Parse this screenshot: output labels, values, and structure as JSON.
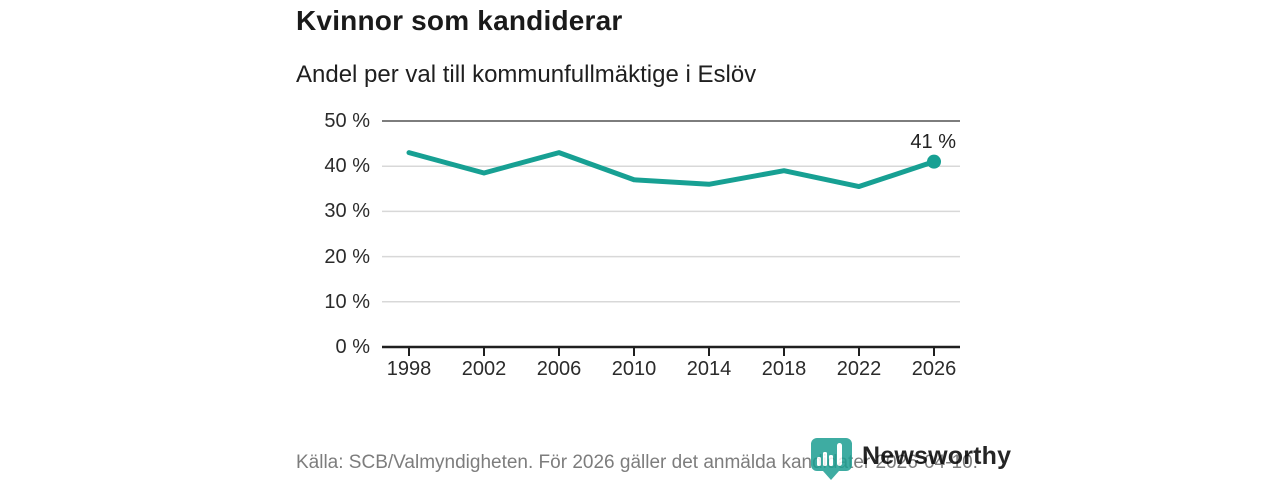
{
  "header": {
    "title": "Kvinnor som kandiderar",
    "subtitle": "Andel per val till kommunfullmäktige i Eslöv"
  },
  "chart_data": {
    "type": "line",
    "title": "Kvinnor som kandiderar",
    "subtitle": "Andel per val till kommunfullmäktige i Eslöv",
    "categories": [
      "1998",
      "2002",
      "2006",
      "2010",
      "2014",
      "2018",
      "2022",
      "2026"
    ],
    "values": [
      43,
      38.5,
      43,
      37,
      36,
      39,
      35.5,
      41
    ],
    "xlabel": "",
    "ylabel": "",
    "ylim": [
      0,
      50
    ],
    "ytick_step": 10,
    "ytick_labels": [
      "0 %",
      "10 %",
      "20 %",
      "30 %",
      "40 %",
      "50 %"
    ],
    "grid": true,
    "legend": "none",
    "end_point_label": "41 %",
    "line_color": "#17a093",
    "gridline_color": "#d8d8d8",
    "top_gridline_color": "#7d7d7d",
    "axis_color": "#1f1f1f"
  },
  "annotation": {
    "end_label": "41 %"
  },
  "footer": {
    "source": "Källa: SCB/Valmyndigheten. För 2026 gäller det anmälda kandidater 2026-04-10."
  },
  "branding": {
    "logo_text": "Newsworthy",
    "logo_color": "#1d9e92"
  }
}
